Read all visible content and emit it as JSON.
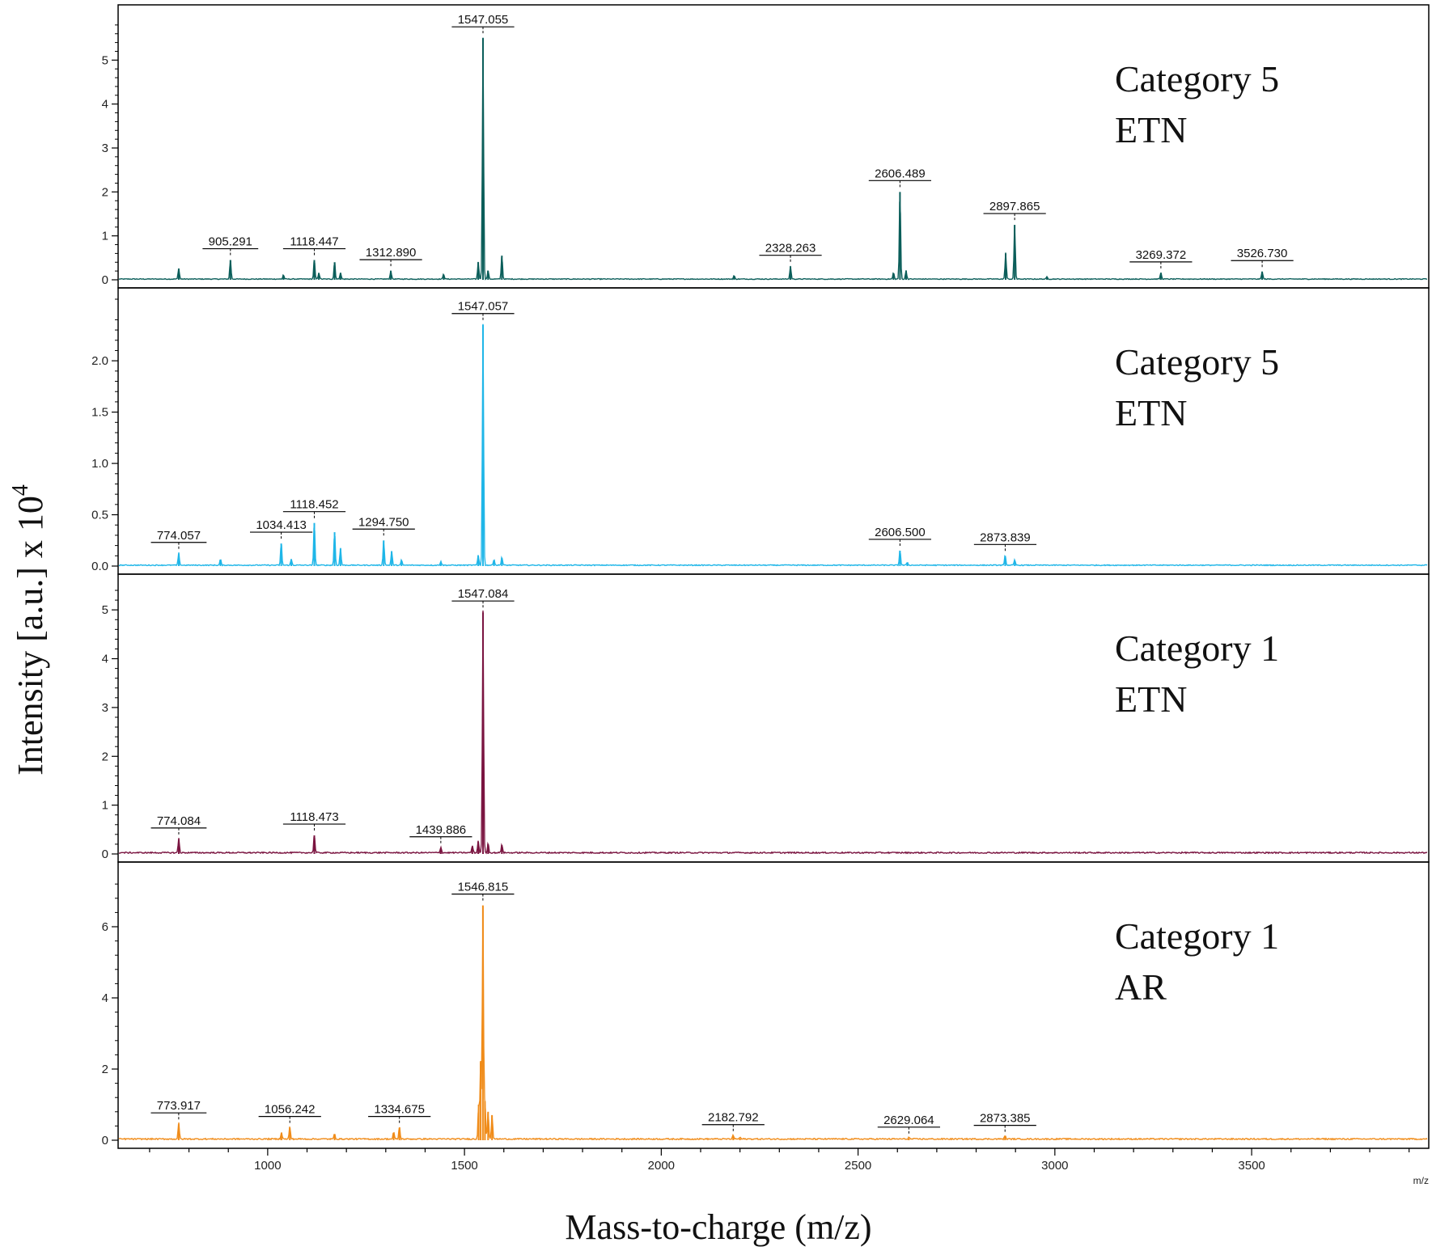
{
  "chart_data": {
    "type": "line",
    "xlabel": "Mass-to-charge (m/z)",
    "ylabel": "Intensity [a.u.] x 10",
    "ylabel_superscript": "4",
    "x_unit": "m/z",
    "xlim": [
      620,
      3950
    ],
    "x_ticks": [
      1000,
      1500,
      2000,
      2500,
      3000,
      3500
    ],
    "panels": [
      {
        "label_line1": "Category 5",
        "label_line2": "ETN",
        "color": "#0b5e5a",
        "ylim": [
          0,
          6
        ],
        "y_ticks": [
          "0",
          "1",
          "2",
          "3",
          "4",
          "5"
        ],
        "y_tick_values": [
          0,
          1,
          2,
          3,
          4,
          5
        ],
        "noise": 0.02,
        "peaks": [
          [
            774,
            0.25
          ],
          [
            905.291,
            0.45
          ],
          [
            1040,
            0.1
          ],
          [
            1118.447,
            0.45
          ],
          [
            1130,
            0.15
          ],
          [
            1170,
            0.4
          ],
          [
            1185,
            0.15
          ],
          [
            1312.89,
            0.2
          ],
          [
            1447,
            0.12
          ],
          [
            1535,
            0.4
          ],
          [
            1547.055,
            5.5
          ],
          [
            1560,
            0.2
          ],
          [
            1595,
            0.55
          ],
          [
            2185,
            0.08
          ],
          [
            2328.263,
            0.3
          ],
          [
            2590,
            0.15
          ],
          [
            2606.489,
            2.0
          ],
          [
            2622,
            0.2
          ],
          [
            2875,
            0.6
          ],
          [
            2897.865,
            1.25
          ],
          [
            2980,
            0.05
          ],
          [
            3269.372,
            0.15
          ],
          [
            3526.73,
            0.18
          ]
        ],
        "annotations": [
          {
            "x": 905.291,
            "label": "905.291"
          },
          {
            "x": 1118.447,
            "label": "1118.447"
          },
          {
            "x": 1312.89,
            "label": "1312.890"
          },
          {
            "x": 1547.055,
            "label": "1547.055"
          },
          {
            "x": 2328.263,
            "label": "2328.263"
          },
          {
            "x": 2606.489,
            "label": "2606.489"
          },
          {
            "x": 2897.865,
            "label": "2897.865"
          },
          {
            "x": 3269.372,
            "label": "3269.372"
          },
          {
            "x": 3526.73,
            "label": "3526.730"
          }
        ]
      },
      {
        "label_line1": "Category 5",
        "label_line2": "ETN",
        "color": "#1fb6e8",
        "ylim": [
          0,
          2.6
        ],
        "y_ticks": [
          "0.0",
          "0.5",
          "1.0",
          "1.5",
          "2.0"
        ],
        "y_tick_values": [
          0,
          0.5,
          1.0,
          1.5,
          2.0
        ],
        "noise": 0.01,
        "peaks": [
          [
            774.057,
            0.12
          ],
          [
            880,
            0.06
          ],
          [
            1034.413,
            0.22
          ],
          [
            1060,
            0.06
          ],
          [
            1118.452,
            0.42
          ],
          [
            1170,
            0.33
          ],
          [
            1185,
            0.17
          ],
          [
            1294.75,
            0.25
          ],
          [
            1315,
            0.14
          ],
          [
            1340,
            0.05
          ],
          [
            1440,
            0.04
          ],
          [
            1535,
            0.1
          ],
          [
            1547.057,
            2.35
          ],
          [
            1575,
            0.06
          ],
          [
            1595,
            0.08
          ],
          [
            2606.5,
            0.15
          ],
          [
            2625,
            0.03
          ],
          [
            2873.839,
            0.1
          ],
          [
            2898,
            0.05
          ]
        ],
        "annotations": [
          {
            "x": 774.057,
            "label": "774.057"
          },
          {
            "x": 1034.413,
            "label": "1034.413"
          },
          {
            "x": 1118.452,
            "label": "1118.452"
          },
          {
            "x": 1294.75,
            "label": "1294.750"
          },
          {
            "x": 1547.057,
            "label": "1547.057"
          },
          {
            "x": 2606.5,
            "label": "2606.500"
          },
          {
            "x": 2873.839,
            "label": "2873.839"
          }
        ]
      },
      {
        "label_line1": "Category 1",
        "label_line2": "ETN",
        "color": "#7a1440",
        "ylim": [
          0,
          5.5
        ],
        "y_ticks": [
          "0",
          "1",
          "2",
          "3",
          "4",
          "5"
        ],
        "y_tick_values": [
          0,
          1,
          2,
          3,
          4,
          5
        ],
        "noise": 0.03,
        "peaks": [
          [
            774.084,
            0.3
          ],
          [
            1118.473,
            0.38
          ],
          [
            1439.886,
            0.12
          ],
          [
            1520,
            0.15
          ],
          [
            1535,
            0.25
          ],
          [
            1547.084,
            4.95
          ],
          [
            1560,
            0.2
          ],
          [
            1595,
            0.18
          ]
        ],
        "annotations": [
          {
            "x": 774.084,
            "label": "774.084"
          },
          {
            "x": 1118.473,
            "label": "1118.473"
          },
          {
            "x": 1439.886,
            "label": "1439.886"
          },
          {
            "x": 1547.084,
            "label": "1547.084"
          }
        ]
      },
      {
        "label_line1": "Category 1",
        "label_line2": "AR",
        "color": "#f08c1a",
        "ylim": [
          0,
          7.5
        ],
        "y_ticks": [
          "0",
          "2",
          "4",
          "6"
        ],
        "y_tick_values": [
          0,
          2,
          4,
          6
        ],
        "noise": 0.04,
        "peaks": [
          [
            773.917,
            0.45
          ],
          [
            1035,
            0.2
          ],
          [
            1056.242,
            0.35
          ],
          [
            1170,
            0.15
          ],
          [
            1320,
            0.2
          ],
          [
            1334.675,
            0.35
          ],
          [
            1536,
            1.0
          ],
          [
            1541,
            2.2
          ],
          [
            1546.815,
            6.6
          ],
          [
            1552,
            1.1
          ],
          [
            1560,
            0.8
          ],
          [
            1570,
            0.7
          ],
          [
            2182.792,
            0.12
          ],
          [
            2200,
            0.05
          ],
          [
            2629.064,
            0.05
          ],
          [
            2873.385,
            0.1
          ]
        ],
        "annotations": [
          {
            "x": 773.917,
            "label": "773.917"
          },
          {
            "x": 1056.242,
            "label": "1056.242"
          },
          {
            "x": 1334.675,
            "label": "1334.675"
          },
          {
            "x": 1546.815,
            "label": "1546.815"
          },
          {
            "x": 2182.792,
            "label": "2182.792"
          },
          {
            "x": 2629.064,
            "label": "2629.064"
          },
          {
            "x": 2873.385,
            "label": "2873.385"
          }
        ]
      }
    ]
  }
}
